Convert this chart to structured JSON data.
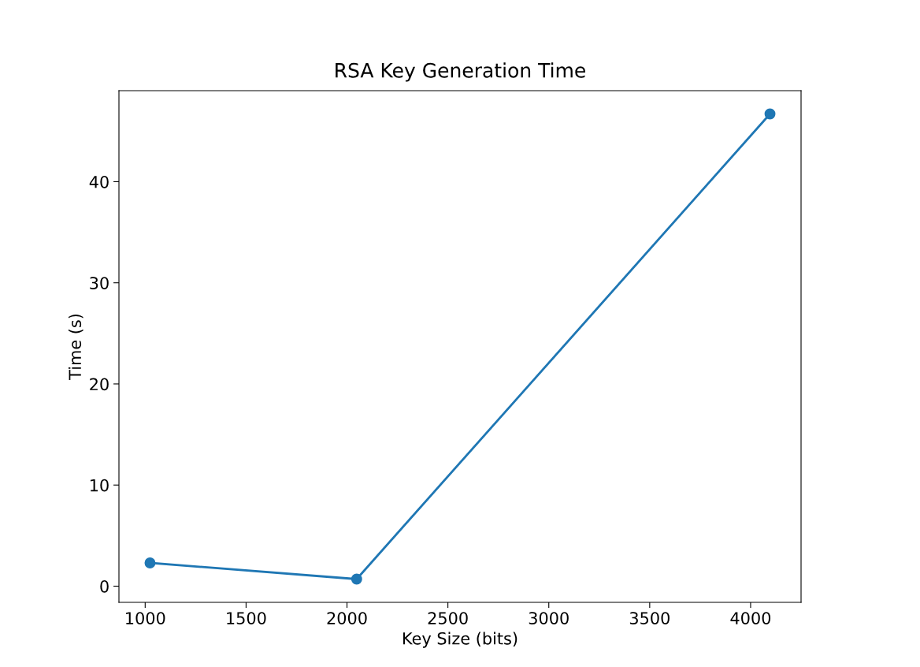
{
  "chart_data": {
    "type": "line",
    "title": "RSA Key Generation Time",
    "xlabel": "Key Size (bits)",
    "ylabel": "Time (s)",
    "x": [
      1024,
      2048,
      4096
    ],
    "series": [
      {
        "color": "#1f77b4",
        "values": [
          2.3,
          0.7,
          46.7
        ]
      }
    ],
    "xlim": [
      870,
      4250
    ],
    "xticks": [
      1000,
      1500,
      2000,
      2500,
      3000,
      3500,
      4000
    ],
    "ylim": [
      -1.6,
      49.0
    ],
    "yticks": [
      0,
      10,
      20,
      30,
      40
    ],
    "marker": "circle",
    "line_style": "solid",
    "grid": false,
    "legend": false
  }
}
